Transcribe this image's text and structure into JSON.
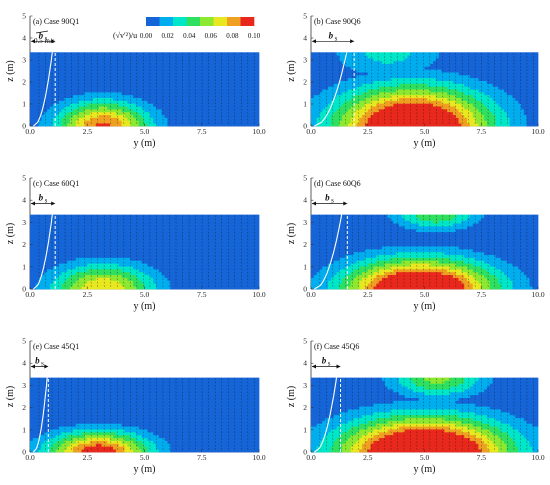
{
  "chart_data": {
    "type": "heatmap",
    "description_free": true,
    "colorbar": {
      "label": "(√v′²)/u",
      "ticks": [
        "0.00",
        "0.02",
        "0.04",
        "0.06",
        "0.08",
        "0.10"
      ],
      "range": [
        0.0,
        0.1
      ],
      "colors": [
        "#1565d8",
        "#00aef0",
        "#00e6c8",
        "#2fe060",
        "#8ce830",
        "#e8e820",
        "#f0a020",
        "#e8281c"
      ]
    },
    "reference_vector": {
      "label": "0.5 m/s",
      "value": 0.5
    },
    "xlabel": "y (m)",
    "ylabel": "z (m)",
    "xlim": [
      0.0,
      10.0
    ],
    "ylim": [
      0,
      5
    ],
    "xticks": [
      "0.0",
      "2.5",
      "5.0",
      "7.5",
      "10.0"
    ],
    "yticks": [
      "0",
      "1",
      "2",
      "3",
      "4",
      "5"
    ],
    "bs_label": "b",
    "bs_sub": "s",
    "panels": [
      {
        "title": "(a) Case 90Q1",
        "water_depth": 3.35,
        "bs": 1.1,
        "blob": {
          "y": 3.2,
          "z": 0.0,
          "ry": 2.0,
          "rz": 1.1,
          "peak": 0.09
        },
        "upper": null
      },
      {
        "title": "(b) Case 90Q6",
        "water_depth": 3.35,
        "bs": 1.9,
        "blob": {
          "y": 4.5,
          "z": 0.0,
          "ry": 3.3,
          "rz": 1.7,
          "peak": 0.13
        },
        "upper": {
          "y": 3.4,
          "z": 3.4,
          "ry": 2.4,
          "rz": 1.2,
          "peak": 0.03
        }
      },
      {
        "title": "(c) Case 60Q1",
        "water_depth": 3.35,
        "bs": 1.1,
        "blob": {
          "y": 3.2,
          "z": 0.0,
          "ry": 2.2,
          "rz": 1.1,
          "peak": 0.075
        },
        "upper": null
      },
      {
        "title": "(d) Case 60Q6",
        "water_depth": 3.35,
        "bs": 1.6,
        "blob": {
          "y": 4.8,
          "z": 0.0,
          "ry": 3.2,
          "rz": 1.3,
          "peak": 0.13
        },
        "upper": {
          "y": 5.5,
          "z": 3.4,
          "ry": 1.8,
          "rz": 0.7,
          "peak": 0.05
        }
      },
      {
        "title": "(e) Case 45Q1",
        "water_depth": 3.35,
        "bs": 0.8,
        "blob": {
          "y": 3.0,
          "z": 0.0,
          "ry": 2.2,
          "rz": 0.9,
          "peak": 0.1
        },
        "upper": null
      },
      {
        "title": "(f) Case 45Q6",
        "water_depth": 3.35,
        "bs": 1.3,
        "blob": {
          "y": 5.0,
          "z": 0.0,
          "ry": 3.6,
          "rz": 1.5,
          "peak": 0.14
        },
        "upper": {
          "y": 5.6,
          "z": 3.4,
          "ry": 2.0,
          "rz": 0.9,
          "peak": 0.055
        }
      }
    ]
  }
}
